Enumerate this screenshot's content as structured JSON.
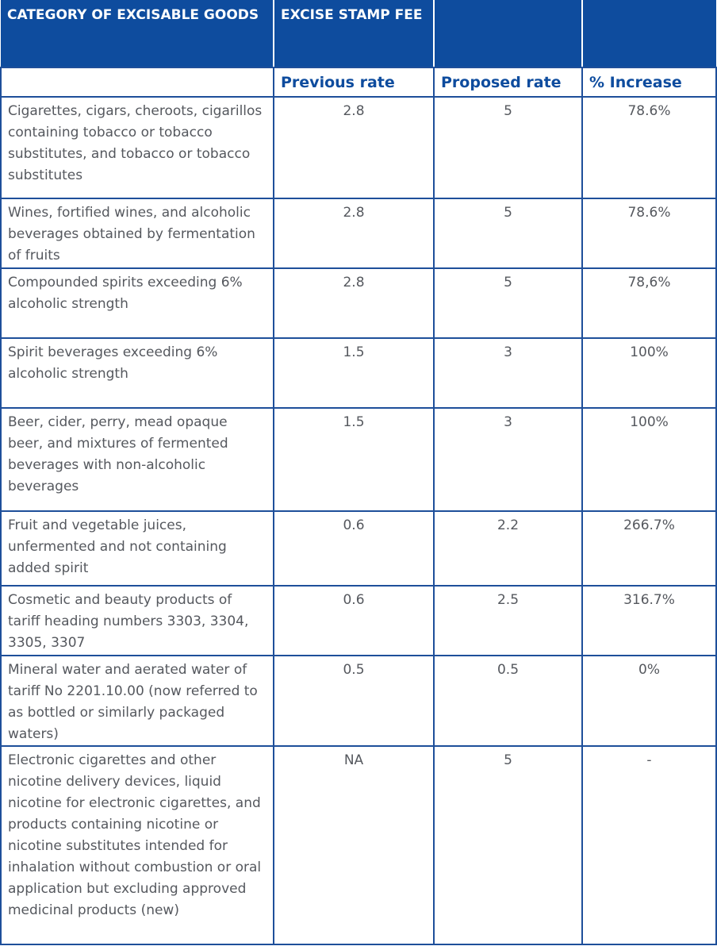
{
  "header": {
    "col1": "CATEGORY OF EXCISABLE GOODS",
    "col2": "EXCISE STAMP FEE",
    "col3": "",
    "col4": ""
  },
  "subheader": {
    "col1": "",
    "previous": "Previous rate",
    "proposed": "Proposed rate",
    "increase": "% Increase"
  },
  "rows": [
    {
      "category": "Cigarettes, cigars, cheroots, cigarillos containing tobacco or tobacco substitutes, and tobacco or tobacco substitutes",
      "previous": "2.8",
      "proposed": "5",
      "increase": "78.6%"
    },
    {
      "category": "Wines, fortified wines, and alcoholic beverages obtained by fermentation of fruits",
      "previous": "2.8",
      "proposed": "5",
      "increase": "78.6%"
    },
    {
      "category": "Compounded spirits exceeding 6% alcoholic strength",
      "previous": "2.8",
      "proposed": "5",
      "increase": "78,6%"
    },
    {
      "category": "Spirit beverages exceeding 6% alcoholic strength",
      "previous": "1.5",
      "proposed": "3",
      "increase": "100%"
    },
    {
      "category": "Beer, cider, perry, mead opaque beer, and mixtures of fermented beverages with non-alcoholic beverages",
      "previous": "1.5",
      "proposed": "3",
      "increase": "100%"
    },
    {
      "category": "Fruit and vegetable juices, unfermented and not containing added spirit",
      "previous": "0.6",
      "proposed": "2.2",
      "increase": "266.7%"
    },
    {
      "category": "Cosmetic and beauty products of tariff heading numbers 3303, 3304, 3305, 3307",
      "previous": "0.6",
      "proposed": "2.5",
      "increase": "316.7%"
    },
    {
      "category": "Mineral water and aerated water of tariff No 2201.10.00 (now referred to as bottled or similarly packaged waters)",
      "previous": "0.5",
      "proposed": "0.5",
      "increase": "0%"
    },
    {
      "category": "Electronic cigarettes and other nicotine delivery devices, liquid nicotine for electronic cigarettes, and products containing nicotine or nicotine substitutes intended for inhalation without combustion or oral application but excluding approved medicinal products (new)",
      "previous": "NA",
      "proposed": "5",
      "increase": "-"
    }
  ]
}
